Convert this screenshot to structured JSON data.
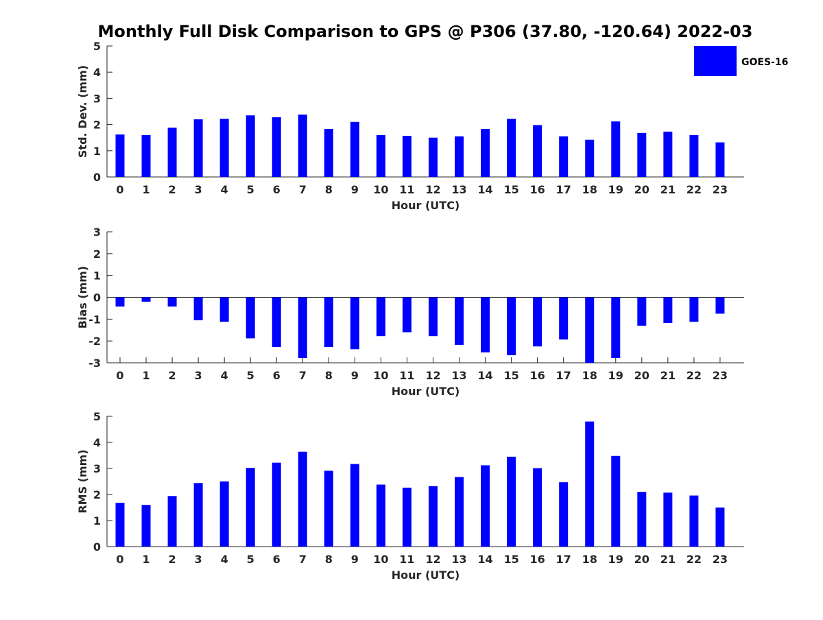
{
  "title": "Monthly Full Disk Comparison to GPS @ P306 (37.80, -120.64) 2022-03",
  "legend": {
    "label": "GOES-16",
    "color": "#0000ff",
    "placement": "top-right"
  },
  "chart_data": [
    {
      "type": "bar",
      "ylabel": "Std. Dev. (mm)",
      "xlabel": "Hour (UTC)",
      "ylim": [
        0,
        5
      ],
      "yticks": [
        0,
        1,
        2,
        3,
        4,
        5
      ],
      "categories": [
        "0",
        "1",
        "2",
        "3",
        "4",
        "5",
        "6",
        "7",
        "8",
        "9",
        "10",
        "11",
        "12",
        "13",
        "14",
        "15",
        "16",
        "17",
        "18",
        "19",
        "20",
        "21",
        "22",
        "23"
      ],
      "series": [
        {
          "name": "GOES-16",
          "values": [
            1.62,
            1.6,
            1.88,
            2.2,
            2.22,
            2.35,
            2.28,
            2.38,
            1.83,
            2.1,
            1.6,
            1.57,
            1.5,
            1.55,
            1.83,
            2.22,
            1.98,
            1.55,
            1.42,
            2.12,
            1.68,
            1.73,
            1.6,
            1.32
          ]
        }
      ],
      "grid": false,
      "zero_line": false
    },
    {
      "type": "bar",
      "ylabel": "Bias (mm)",
      "xlabel": "Hour (UTC)",
      "ylim": [
        -3,
        3
      ],
      "yticks": [
        -3,
        -2,
        -1,
        0,
        1,
        2,
        3
      ],
      "categories": [
        "0",
        "1",
        "2",
        "3",
        "4",
        "5",
        "6",
        "7",
        "8",
        "9",
        "10",
        "11",
        "12",
        "13",
        "14",
        "15",
        "16",
        "17",
        "18",
        "19",
        "20",
        "21",
        "22",
        "23"
      ],
      "series": [
        {
          "name": "GOES-16",
          "values": [
            -0.42,
            -0.2,
            -0.42,
            -1.05,
            -1.12,
            -1.88,
            -2.28,
            -2.78,
            -2.28,
            -2.38,
            -1.78,
            -1.6,
            -1.78,
            -2.18,
            -2.52,
            -2.65,
            -2.25,
            -1.93,
            -3.0,
            -2.78,
            -1.3,
            -1.18,
            -1.12,
            -0.75
          ]
        }
      ],
      "grid": false,
      "zero_line": true
    },
    {
      "type": "bar",
      "ylabel": "RMS (mm)",
      "xlabel": "Hour (UTC)",
      "ylim": [
        0,
        5
      ],
      "yticks": [
        0,
        1,
        2,
        3,
        4,
        5
      ],
      "categories": [
        "0",
        "1",
        "2",
        "3",
        "4",
        "5",
        "6",
        "7",
        "8",
        "9",
        "10",
        "11",
        "12",
        "13",
        "14",
        "15",
        "16",
        "17",
        "18",
        "19",
        "20",
        "21",
        "22",
        "23"
      ],
      "series": [
        {
          "name": "GOES-16",
          "values": [
            1.68,
            1.6,
            1.94,
            2.44,
            2.5,
            3.02,
            3.22,
            3.64,
            2.91,
            3.17,
            2.38,
            2.26,
            2.32,
            2.67,
            3.12,
            3.45,
            3.01,
            2.47,
            4.8,
            3.48,
            2.1,
            2.07,
            1.96,
            1.5
          ]
        }
      ],
      "grid": false,
      "zero_line": false
    }
  ]
}
